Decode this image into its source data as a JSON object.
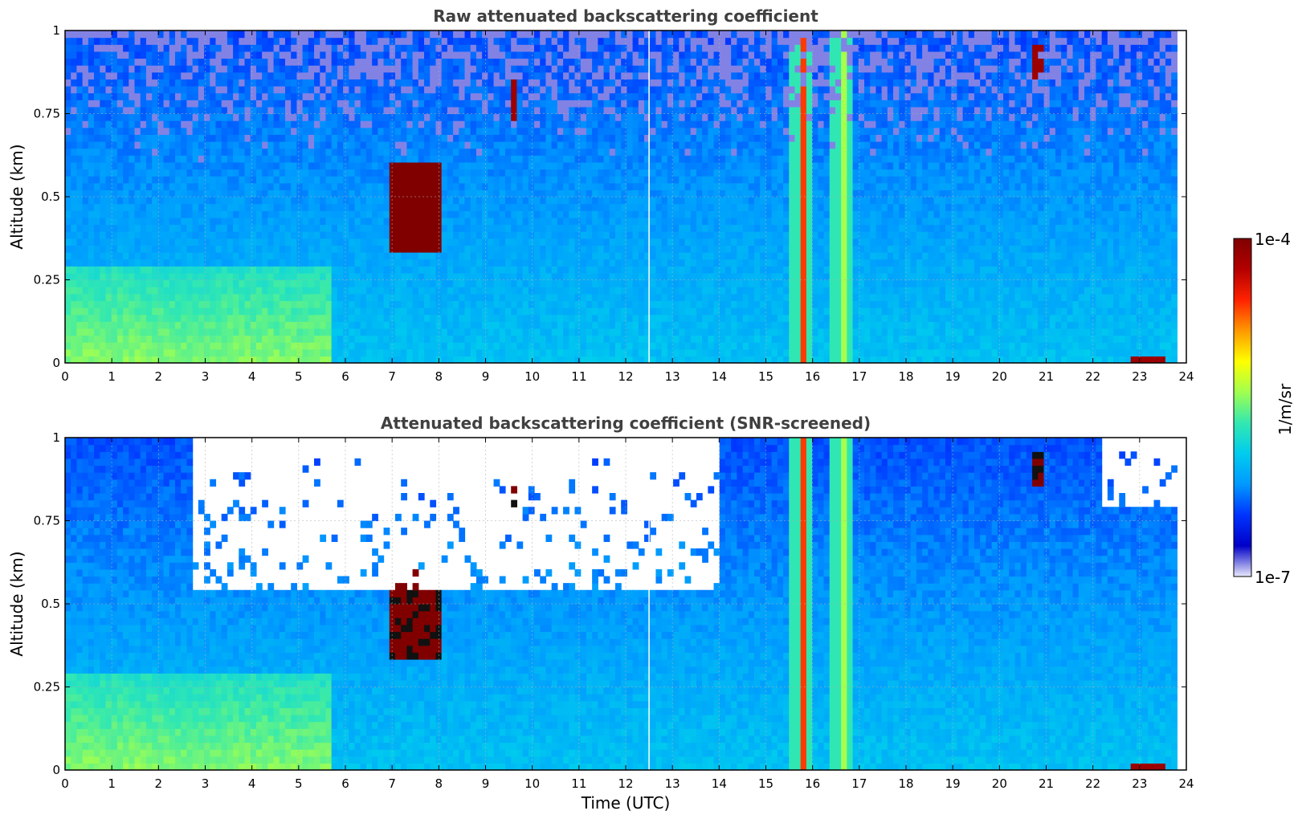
{
  "chart_data": [
    {
      "type": "heatmap",
      "title": "Raw attenuated backscattering coefficient",
      "xlabel": "",
      "ylabel": "Altitude (km)",
      "xlim": [
        0,
        24
      ],
      "ylim": [
        0,
        1
      ],
      "xticks": [
        "0",
        "1",
        "2",
        "3",
        "4",
        "5",
        "6",
        "7",
        "8",
        "9",
        "10",
        "11",
        "12",
        "13",
        "14",
        "15",
        "16",
        "17",
        "18",
        "19",
        "20",
        "21",
        "22",
        "23",
        "24"
      ],
      "yticks": [
        "0",
        "0.25",
        "0.5",
        "0.75",
        "1"
      ],
      "grid": true,
      "data_end_hour": 23.8,
      "masked": false,
      "features": [
        {
          "kind": "boundary_layer_aerosol",
          "x": [
            0,
            5.7
          ],
          "y": [
            0,
            0.3
          ],
          "level": 0.5
        },
        {
          "kind": "cloud",
          "x": [
            6.9,
            8.1
          ],
          "y": [
            0.33,
            0.6
          ],
          "level": 1.0
        },
        {
          "kind": "cloud",
          "x": [
            9.5,
            9.7
          ],
          "y": [
            0.72,
            0.88
          ],
          "level": 0.95
        },
        {
          "kind": "cloud",
          "x": [
            20.75,
            20.9
          ],
          "y": [
            0.85,
            0.95
          ],
          "level": 0.95
        },
        {
          "kind": "rain_column",
          "x": [
            15.7,
            15.9
          ],
          "y": [
            0,
            1
          ],
          "level": 0.8
        },
        {
          "kind": "rain_column",
          "x": [
            16.55,
            16.75
          ],
          "y": [
            0,
            1
          ],
          "level": 0.55
        },
        {
          "kind": "surface_return",
          "x": [
            22.8,
            23.5
          ],
          "y": [
            0,
            0.03
          ],
          "level": 0.95
        },
        {
          "kind": "data_gap",
          "x": [
            12.5,
            12.5
          ],
          "y": [
            0,
            1
          ]
        }
      ]
    },
    {
      "type": "heatmap",
      "title": "Attenuated backscattering coefficient (SNR-screened)",
      "xlabel": "Time (UTC)",
      "ylabel": "Altitude (km)",
      "xlim": [
        0,
        24
      ],
      "ylim": [
        0,
        1
      ],
      "xticks": [
        "0",
        "1",
        "2",
        "3",
        "4",
        "5",
        "6",
        "7",
        "8",
        "9",
        "10",
        "11",
        "12",
        "13",
        "14",
        "15",
        "16",
        "17",
        "18",
        "19",
        "20",
        "21",
        "22",
        "23",
        "24"
      ],
      "yticks": [
        "0",
        "0.25",
        "0.5",
        "0.75",
        "1"
      ],
      "grid": true,
      "data_end_hour": 23.8,
      "masked": true,
      "features": [
        {
          "kind": "boundary_layer_aerosol",
          "x": [
            0,
            5.7
          ],
          "y": [
            0,
            0.3
          ],
          "level": 0.5
        },
        {
          "kind": "cloud_saturated",
          "x": [
            6.9,
            8.1
          ],
          "y": [
            0.33,
            0.6
          ],
          "level": 1.0
        },
        {
          "kind": "cloud_saturated",
          "x": [
            9.5,
            9.7
          ],
          "y": [
            0.72,
            0.88
          ],
          "level": 1.0
        },
        {
          "kind": "cloud_saturated",
          "x": [
            20.75,
            20.9
          ],
          "y": [
            0.85,
            0.95
          ],
          "level": 1.0
        },
        {
          "kind": "rain_column",
          "x": [
            15.7,
            15.9
          ],
          "y": [
            0,
            1
          ],
          "level": 0.8
        },
        {
          "kind": "rain_column",
          "x": [
            16.55,
            16.75
          ],
          "y": [
            0,
            1
          ],
          "level": 0.55
        },
        {
          "kind": "surface_return",
          "x": [
            22.8,
            23.5
          ],
          "y": [
            0,
            0.03
          ],
          "level": 0.95
        },
        {
          "kind": "data_gap",
          "x": [
            12.5,
            12.5
          ],
          "y": [
            0,
            1
          ]
        },
        {
          "kind": "screened_region",
          "x": [
            2.7,
            14.0
          ],
          "y": [
            0.55,
            1
          ]
        },
        {
          "kind": "screened_region",
          "x": [
            22.2,
            23.8
          ],
          "y": [
            0.8,
            1
          ]
        }
      ]
    }
  ],
  "colorbar": {
    "label": "1/m/sr",
    "max_label": "1e-4",
    "min_label": "1e-7",
    "scale": "log",
    "range": [
      1e-07,
      0.0001
    ],
    "colormap": "jet",
    "colors": [
      "#e9e9fb",
      "#0000c8",
      "#0033ff",
      "#0099ff",
      "#00ccee",
      "#33e8b0",
      "#a0ff50",
      "#ffff00",
      "#ff9900",
      "#ff2200",
      "#b30000",
      "#800000"
    ]
  }
}
